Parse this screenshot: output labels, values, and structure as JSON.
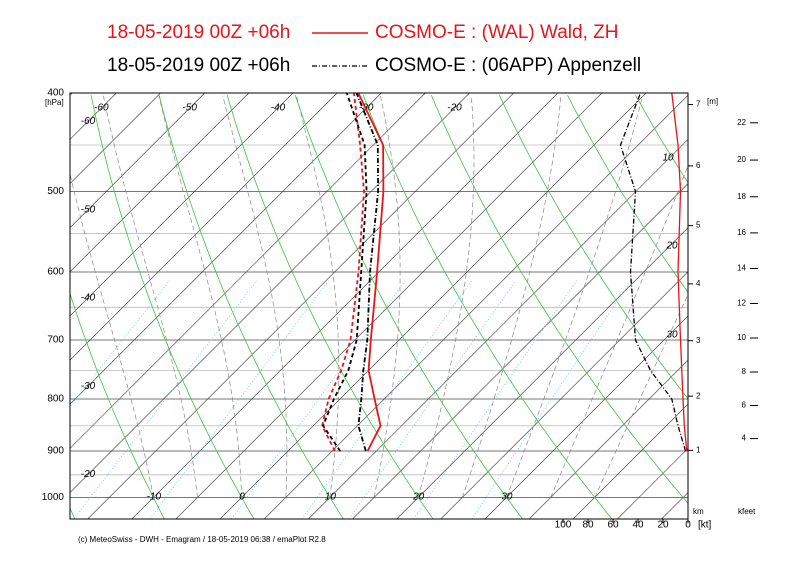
{
  "chart_data": {
    "type": "emagram",
    "run": "18-05-2019  00Z +06h",
    "pressure": [
      900,
      850,
      800,
      750,
      700,
      600,
      500,
      450,
      400
    ],
    "series": [
      {
        "name": "COSMO-E : (WAL)  Wald, ZH",
        "color": "#e8141b",
        "temperature": [
          9.0,
          7.6,
          3.9,
          0,
          -3.2,
          -10.2,
          -18.6,
          -23.9,
          -32.6
        ],
        "dewpoint": [
          5.3,
          1.0,
          -1.3,
          -3.1,
          -5.5,
          -12.3,
          -20.8,
          -26.5,
          -33.1
        ],
        "wind_speed": [
          1,
          3,
          4,
          5,
          6,
          8,
          6,
          8,
          13
        ]
      },
      {
        "name": "COSMO-E : (06APP)  Appenzell",
        "color": "#000000",
        "temperature": [
          8.8,
          5.1,
          2.4,
          -0.6,
          -3.6,
          -11,
          -19.2,
          -24.5,
          -32.8
        ],
        "dewpoint": [
          5.9,
          1.1,
          -0.7,
          -2.3,
          -4.8,
          -12,
          -20.5,
          -26,
          -33.9
        ],
        "wind_speed": [
          2,
          8,
          13,
          30,
          42,
          46,
          42,
          54,
          38
        ]
      }
    ],
    "ylabel": "[hPa]",
    "ylim": [
      1050,
      400
    ],
    "yticks": [
      400,
      500,
      600,
      700,
      800,
      900,
      1000
    ],
    "xlim": [
      -17,
      53
    ],
    "xticks": [
      -10,
      0,
      10,
      20,
      30
    ],
    "isotherm_labels_top": [
      -60,
      -50,
      -40,
      -30,
      -20
    ],
    "isotherm_labels_left": [
      -60,
      -50,
      -40,
      -30,
      -20
    ],
    "wind_lim": [
      0,
      100
    ],
    "wind_ticks": [
      100,
      80,
      60,
      40,
      20,
      0
    ],
    "wind_label": "[kt]",
    "height_km_ticks": [
      1,
      2,
      3,
      4,
      5,
      6,
      7
    ],
    "height_km_label": "km",
    "height_m_label": "[m]",
    "height_kfeet_ticks": [
      4,
      6,
      8,
      10,
      12,
      14,
      16,
      18,
      20,
      22
    ],
    "height_kfeet_label": "kfeet",
    "right_labels": [
      10,
      20,
      30
    ],
    "footer": "(c) MeteoSwiss - DWH - Emagram / 18-05-2019 06:38 / emaPlot R2.8"
  }
}
